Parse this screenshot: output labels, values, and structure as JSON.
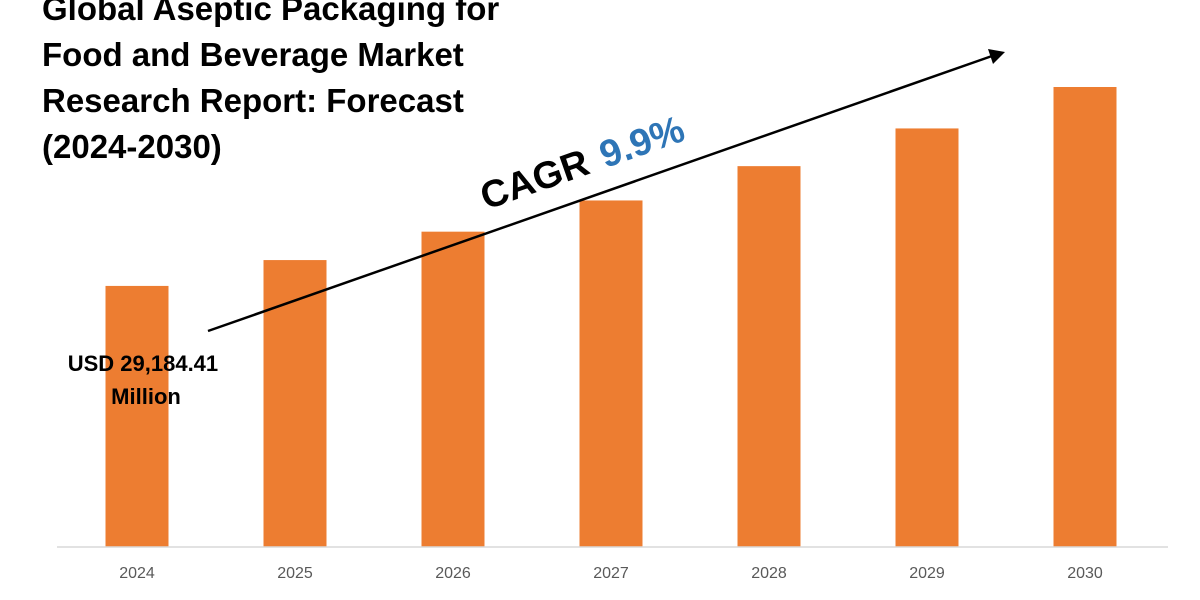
{
  "colors": {
    "bar": "#ED7D31",
    "cagr_value": "#2E75B6",
    "axis": "#D9D9D9",
    "arrow": "#000000"
  },
  "chart_data": {
    "type": "bar",
    "title_lines": [
      "Global Aseptic Packaging for",
      "Food and Beverage Market",
      "Research Report: Forecast",
      "(2024-2030)"
    ],
    "categories": [
      "2024",
      "2025",
      "2026",
      "2027",
      "2028",
      "2029",
      "2030"
    ],
    "values": [
      29184.41,
      32073.67,
      35249.0,
      38738.65,
      42573.78,
      46788.58,
      51420.65
    ],
    "unit": "USD Million",
    "ylim": [
      0,
      51420.65
    ],
    "grid": false,
    "legend": "none",
    "annotations": {
      "base_value_lines": [
        "USD 29,184.41",
        "Million"
      ],
      "cagr_label": "CAGR",
      "cagr_value": "9.9%"
    }
  }
}
